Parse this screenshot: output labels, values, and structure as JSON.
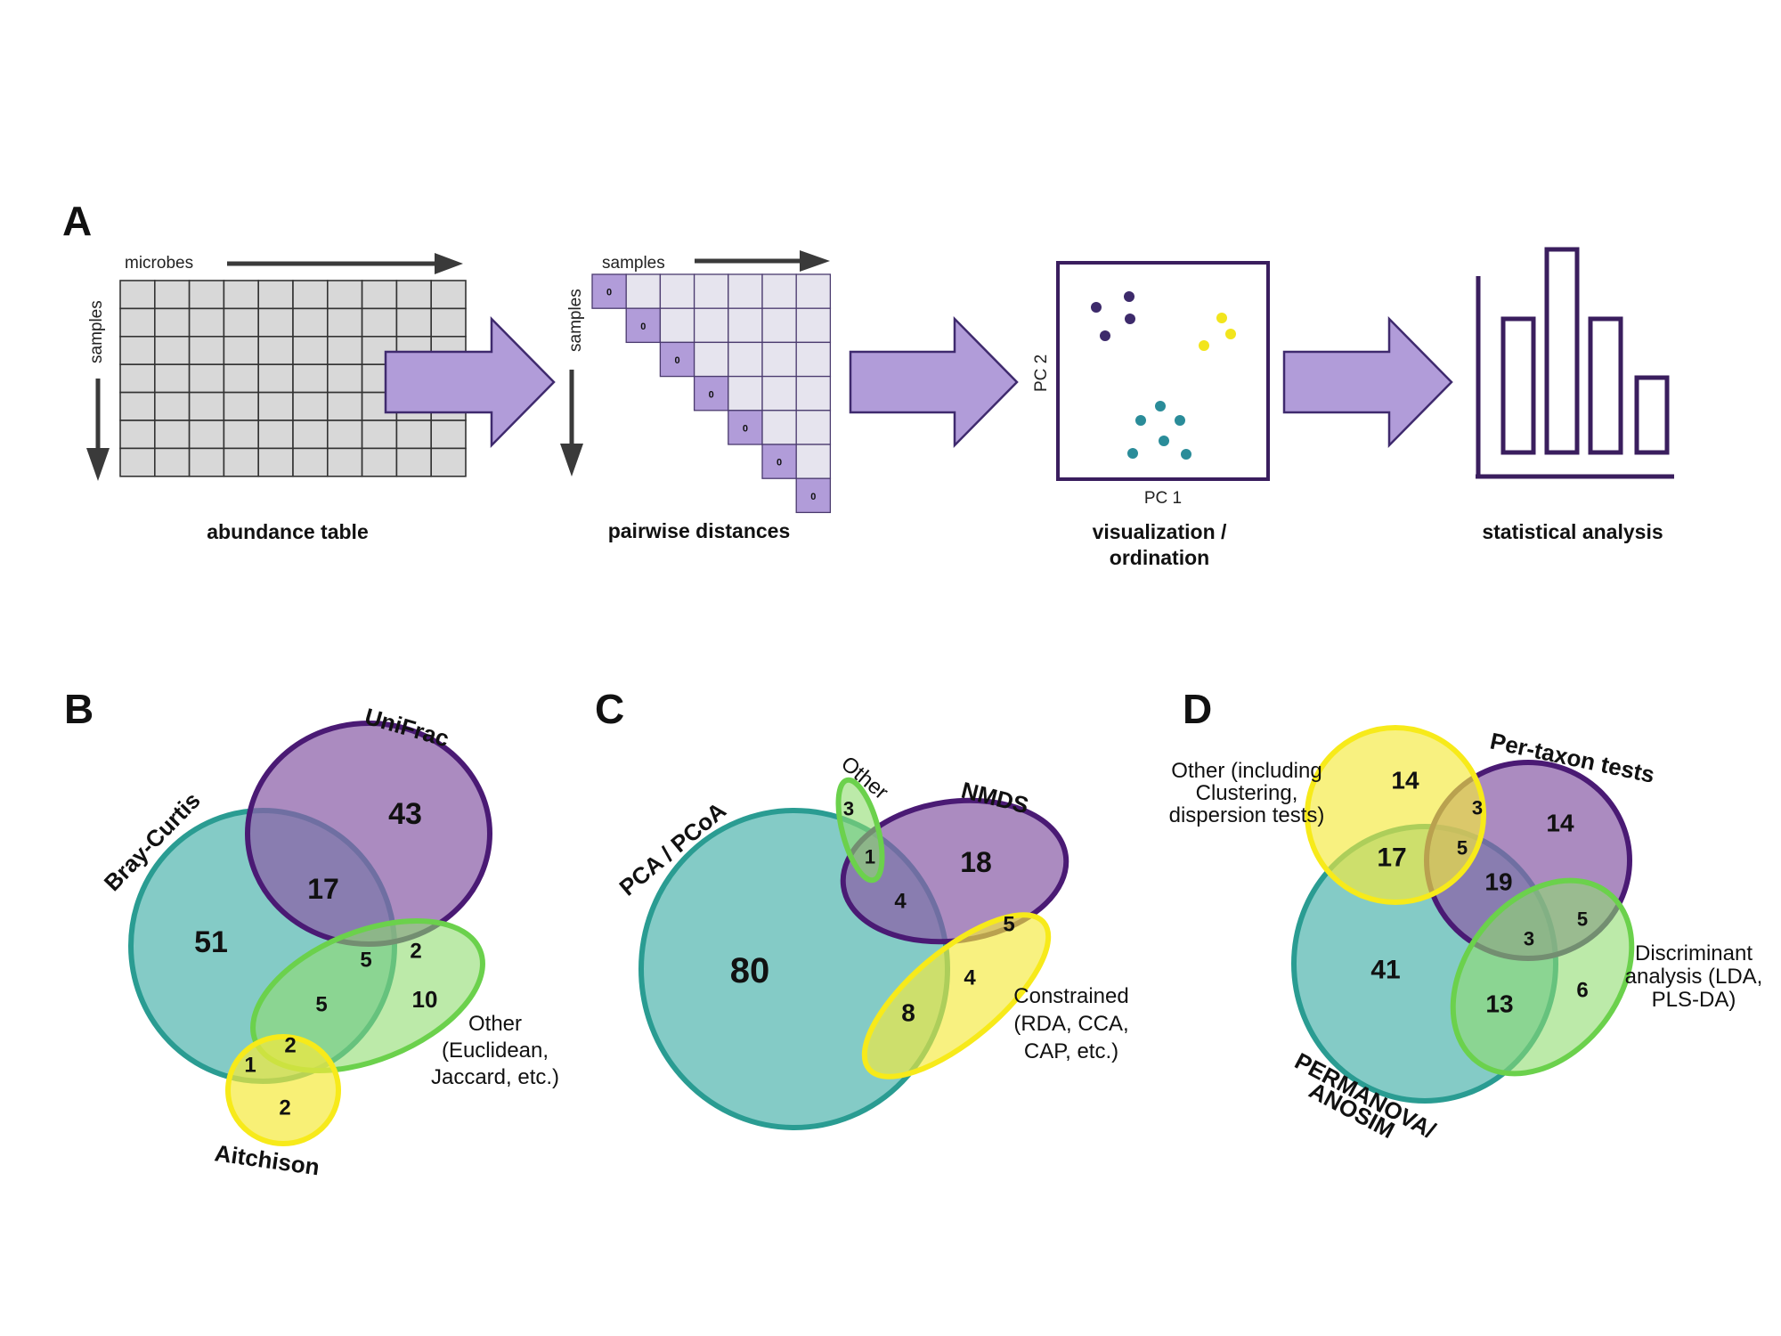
{
  "panels": {
    "a": {
      "letter": "A",
      "table": {
        "axis_top": "microbes",
        "axis_left": "samples",
        "caption": "abundance table",
        "rows": 7,
        "cols": 10
      },
      "distances": {
        "axis_top": "samples",
        "axis_left": "samples",
        "caption": "pairwise distances",
        "size": 7,
        "diag_value": "0"
      },
      "ordination": {
        "xlabel": "PC 1",
        "ylabel": "PC 2",
        "caption_line1": "visualization /",
        "caption_line2": "ordination"
      },
      "stats": {
        "caption": "statistical analysis",
        "bar_heights": [
          0.5,
          0.76,
          0.5,
          0.28
        ]
      },
      "colors": {
        "arrow": "#b19cd9",
        "arrow_stroke": "#3f2a6e",
        "grid": "#d8d8d8",
        "purple_point": "#3d2a6b",
        "yellow_point": "#f2e51d",
        "teal_point": "#2a8c99"
      }
    },
    "b": {
      "letter": "B",
      "labels": {
        "unifrac": "UniFrac",
        "bray_curtis": "Bray-Curtis",
        "other_line1": "Other",
        "other_line2": "(Euclidean,",
        "other_line3": "Jaccard, etc.)",
        "aitchison": "Aitchison"
      },
      "counts": {
        "unifrac_only": "43",
        "bray_curtis_only": "51",
        "bc_unifrac": "17",
        "bc_unifrac_other": "5",
        "unifrac_other": "2",
        "other_only": "10",
        "bc_other": "5",
        "bc_other_aitchison": "2",
        "bc_aitchison": "1",
        "aitchison_only": "2"
      }
    },
    "c": {
      "letter": "C",
      "labels": {
        "pca": "PCA / PCoA",
        "other": "Other",
        "nmds": "NMDS",
        "constrained_line1": "Constrained",
        "constrained_line2": "(RDA, CCA,",
        "constrained_line3": "CAP, etc.)"
      },
      "counts": {
        "pca_only": "80",
        "nmds_only": "18",
        "other_only": "3",
        "other_nmds_pca": "1",
        "pca_nmds": "4",
        "nmds_constrained": "5",
        "constrained_only": "4",
        "pca_constrained": "8"
      }
    },
    "d": {
      "letter": "D",
      "labels": {
        "other_line1": "Other (including",
        "other_line2": "Clustering,",
        "other_line3": "dispersion tests)",
        "per_taxon": "Per-taxon tests",
        "discriminant_line1": "Discriminant",
        "discriminant_line2": "analysis (LDA,",
        "discriminant_line3": "PLS-DA)",
        "permanova_line1": "PERMANOVA/",
        "permanova_line2": "ANOSIM"
      },
      "counts": {
        "other_only": "14",
        "other_pertaxon": "3",
        "per_taxon_only": "14",
        "other_permanova": "17",
        "other_permanova_pertaxon": "5",
        "permanova_pertaxon": "19",
        "pertaxon_discriminant": "5",
        "permanova_pertaxon_discriminant": "3",
        "permanova_only": "41",
        "permanova_discriminant": "13",
        "discriminant_only": "6"
      }
    },
    "venn_colors": {
      "teal": "#2a9c92",
      "teal_fill": "#84cbc6",
      "purple": "#4a1a74",
      "purple_fill": "#a57fb9",
      "green": "#6bd14c",
      "green_fill": "#b8e8a0",
      "yellow": "#f7ea1a",
      "yellow_fill": "#f8f08a"
    }
  }
}
